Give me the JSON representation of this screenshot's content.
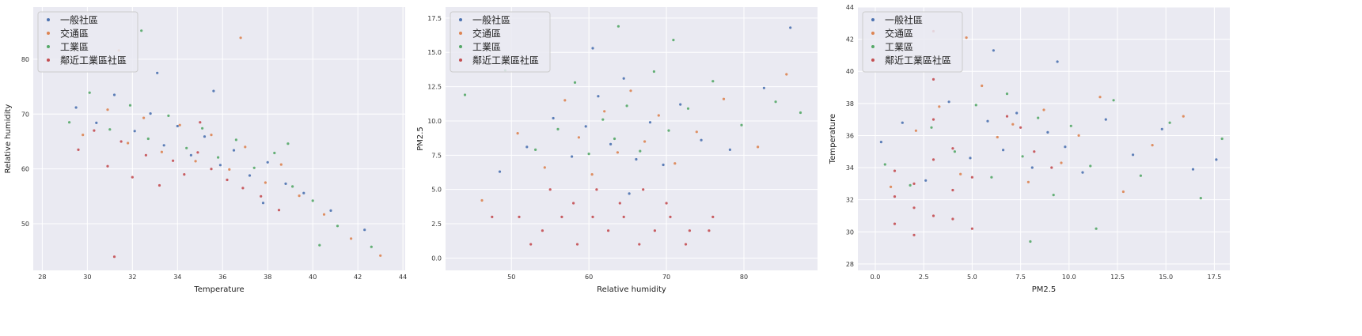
{
  "chart_data": [
    {
      "type": "scatter",
      "xlabel": "Temperature",
      "ylabel": "Relative humidity",
      "xlim": [
        27.6,
        44.1
      ],
      "ylim": [
        41.5,
        89.5
      ],
      "xticks": [
        "28",
        "30",
        "32",
        "34",
        "36",
        "38",
        "40",
        "42",
        "44"
      ],
      "yticks": [
        "50",
        "60",
        "70",
        "80"
      ],
      "legend_position": "top-left",
      "series": [
        {
          "name": "一般社區",
          "color": "#4c72b0",
          "x": [
            29.5,
            30.4,
            31.2,
            32.1,
            32.8,
            33.4,
            34.0,
            34.6,
            35.2,
            35.9,
            36.5,
            37.2,
            38.0,
            38.8,
            39.6,
            40.8,
            42.3,
            33.1,
            35.6,
            37.8
          ],
          "y": [
            71.2,
            68.4,
            73.5,
            66.9,
            70.1,
            64.3,
            67.8,
            62.5,
            65.9,
            60.7,
            63.4,
            58.8,
            61.2,
            57.3,
            55.6,
            52.4,
            48.9,
            77.5,
            74.2,
            53.8
          ]
        },
        {
          "name": "交通區",
          "color": "#dd8452",
          "x": [
            29.8,
            30.9,
            31.8,
            32.5,
            33.3,
            34.1,
            34.8,
            35.5,
            36.3,
            37.0,
            37.9,
            38.6,
            39.4,
            40.5,
            41.7,
            43.0,
            31.4,
            36.8
          ],
          "y": [
            66.2,
            70.8,
            64.7,
            69.3,
            63.1,
            68.0,
            61.4,
            66.2,
            59.9,
            64.0,
            57.5,
            60.8,
            55.1,
            51.7,
            47.3,
            44.2,
            81.6,
            83.9
          ]
        },
        {
          "name": "工業區",
          "color": "#55a868",
          "x": [
            29.2,
            30.1,
            31.0,
            31.9,
            32.7,
            33.6,
            34.4,
            35.1,
            35.8,
            36.6,
            37.4,
            38.3,
            39.1,
            40.0,
            41.1,
            42.6,
            32.4,
            38.9,
            40.3
          ],
          "y": [
            68.5,
            73.9,
            67.2,
            71.6,
            65.5,
            69.7,
            63.8,
            67.4,
            62.1,
            65.3,
            60.2,
            62.9,
            56.8,
            54.2,
            49.6,
            45.8,
            85.2,
            64.6,
            46.1
          ]
        },
        {
          "name": "鄰近工業區社區",
          "color": "#c44e52",
          "x": [
            29.6,
            30.3,
            30.9,
            31.5,
            32.0,
            32.6,
            33.2,
            33.8,
            34.3,
            34.9,
            35.5,
            36.2,
            36.9,
            37.7,
            38.5,
            31.2,
            35.0
          ],
          "y": [
            63.5,
            67.0,
            60.5,
            65.0,
            58.5,
            62.5,
            57.0,
            61.5,
            59.0,
            63.0,
            60.0,
            58.0,
            56.5,
            55.0,
            52.5,
            44.0,
            68.5
          ]
        }
      ]
    },
    {
      "type": "scatter",
      "xlabel": "Relative humidity",
      "ylabel": "PM2.5",
      "xlim": [
        41.5,
        89.5
      ],
      "ylim": [
        -0.9,
        18.3
      ],
      "xticks": [
        "50",
        "60",
        "70",
        "80"
      ],
      "yticks": [
        "0.0",
        "2.5",
        "5.0",
        "7.5",
        "10.0",
        "12.5",
        "15.0",
        "17.5"
      ],
      "legend_position": "top-left",
      "series": [
        {
          "name": "一般社區",
          "color": "#4c72b0",
          "x": [
            48.5,
            52.0,
            55.4,
            57.8,
            59.6,
            61.2,
            62.8,
            64.5,
            66.1,
            67.9,
            69.6,
            71.8,
            74.5,
            78.2,
            82.6,
            86.0,
            60.5,
            65.2
          ],
          "y": [
            6.3,
            8.1,
            10.2,
            7.4,
            9.6,
            11.8,
            8.3,
            13.1,
            7.2,
            9.9,
            6.8,
            11.2,
            8.6,
            7.9,
            12.4,
            16.8,
            15.3,
            4.7
          ]
        },
        {
          "name": "交通區",
          "color": "#dd8452",
          "x": [
            46.2,
            50.8,
            54.3,
            56.9,
            58.7,
            60.4,
            62.0,
            63.7,
            65.4,
            67.2,
            69.0,
            71.1,
            73.9,
            77.4,
            81.8,
            85.5
          ],
          "y": [
            4.2,
            9.1,
            6.6,
            11.5,
            8.8,
            6.1,
            10.7,
            7.7,
            12.2,
            8.5,
            10.4,
            6.9,
            9.2,
            11.6,
            8.1,
            13.4
          ]
        },
        {
          "name": "工業區",
          "color": "#55a868",
          "x": [
            44.0,
            49.2,
            53.1,
            56.0,
            58.2,
            60.0,
            61.8,
            63.3,
            64.9,
            66.6,
            68.4,
            70.3,
            72.8,
            76.0,
            79.7,
            84.1,
            87.3,
            63.8,
            70.9
          ],
          "y": [
            11.9,
            13.7,
            7.9,
            9.4,
            12.8,
            7.6,
            10.1,
            8.7,
            11.1,
            7.8,
            13.6,
            9.3,
            10.9,
            12.9,
            9.7,
            11.4,
            10.6,
            16.9,
            15.9
          ]
        },
        {
          "name": "鄰近工業區社區",
          "color": "#c44e52",
          "x": [
            47.5,
            51.0,
            54.0,
            56.5,
            58.5,
            60.5,
            62.5,
            64.5,
            66.5,
            68.5,
            70.5,
            72.5,
            75.5,
            52.5,
            58.0,
            64.0,
            70.0,
            76.0,
            55.0,
            61.0,
            67.0,
            73.0
          ],
          "y": [
            3.0,
            3.0,
            2.0,
            3.0,
            1.0,
            3.0,
            2.0,
            3.0,
            1.0,
            2.0,
            3.0,
            1.0,
            2.0,
            1.0,
            4.0,
            4.0,
            4.0,
            3.0,
            5.0,
            5.0,
            5.0,
            2.0
          ]
        }
      ]
    },
    {
      "type": "scatter",
      "xlabel": "PM2.5",
      "ylabel": "Temperature",
      "xlim": [
        -0.9,
        18.3
      ],
      "ylim": [
        27.6,
        44.0
      ],
      "xticks": [
        "0.0",
        "2.5",
        "5.0",
        "7.5",
        "10.0",
        "12.5",
        "15.0",
        "17.5"
      ],
      "yticks": [
        "28",
        "30",
        "32",
        "34",
        "36",
        "38",
        "40",
        "42",
        "44"
      ],
      "legend_position": "top-left",
      "series": [
        {
          "name": "一般社區",
          "color": "#4c72b0",
          "x": [
            0.3,
            1.4,
            2.6,
            3.8,
            4.9,
            5.8,
            6.6,
            7.3,
            8.1,
            8.9,
            9.8,
            10.7,
            11.9,
            13.3,
            14.8,
            16.4,
            17.6,
            6.1,
            9.4
          ],
          "y": [
            35.6,
            36.8,
            33.2,
            38.1,
            34.6,
            36.9,
            35.1,
            37.4,
            34.0,
            36.2,
            35.3,
            33.7,
            37.0,
            34.8,
            36.4,
            33.9,
            34.5,
            41.3,
            40.6
          ]
        },
        {
          "name": "交通區",
          "color": "#dd8452",
          "x": [
            0.8,
            2.1,
            3.3,
            4.4,
            5.5,
            6.3,
            7.1,
            7.9,
            8.7,
            9.6,
            10.5,
            11.6,
            12.8,
            14.3,
            15.9,
            4.7
          ],
          "y": [
            32.8,
            36.3,
            37.8,
            33.6,
            39.1,
            35.9,
            36.7,
            33.1,
            37.6,
            34.3,
            36.0,
            38.4,
            32.5,
            35.4,
            37.2,
            42.1
          ]
        },
        {
          "name": "工業區",
          "color": "#55a868",
          "x": [
            0.5,
            1.8,
            2.9,
            4.1,
            5.2,
            6.0,
            6.8,
            7.6,
            8.4,
            9.2,
            10.1,
            11.1,
            12.3,
            13.7,
            15.2,
            16.8,
            17.9,
            8.0,
            11.4
          ],
          "y": [
            34.2,
            32.9,
            36.5,
            35.0,
            37.9,
            33.4,
            38.6,
            34.7,
            37.1,
            32.3,
            36.6,
            34.1,
            38.2,
            33.5,
            36.8,
            32.1,
            35.8,
            29.4,
            30.2
          ]
        },
        {
          "name": "鄰近工業區社區",
          "color": "#c44e52",
          "x": [
            1.0,
            1.0,
            1.0,
            2.0,
            2.0,
            2.0,
            3.0,
            3.0,
            3.0,
            3.0,
            4.0,
            4.0,
            4.0,
            5.0,
            5.0,
            7.5,
            8.2,
            6.8,
            9.1,
            3.0
          ],
          "y": [
            30.5,
            32.2,
            33.8,
            29.8,
            31.5,
            33.0,
            31.0,
            34.5,
            37.0,
            39.5,
            30.8,
            32.6,
            35.2,
            30.2,
            33.4,
            36.5,
            35.0,
            37.2,
            34.0,
            42.5
          ]
        }
      ]
    }
  ]
}
